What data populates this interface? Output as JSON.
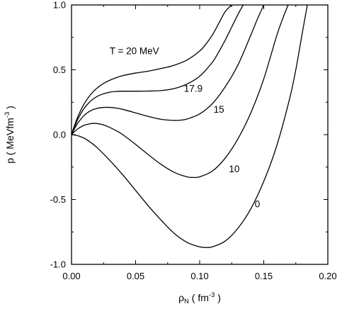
{
  "chart_data": {
    "type": "line",
    "title": "",
    "xlabel": {
      "main": "ρ",
      "sub": "N",
      "unit_prefix": " ( fm",
      "unit_sup": "-3",
      "unit_suffix": " )"
    },
    "ylabel": {
      "main": "p ( MeVfm",
      "sup": "-3",
      "suffix": " )"
    },
    "xlim": [
      0.0,
      0.2
    ],
    "ylim": [
      -1.0,
      1.0
    ],
    "xticks": [
      0.0,
      0.05,
      0.1,
      0.15,
      0.2
    ],
    "xtick_labels": [
      "0.00",
      "0.05",
      "0.10",
      "0.15",
      "0.20"
    ],
    "yticks": [
      -1.0,
      -0.5,
      0.0,
      0.5,
      1.0
    ],
    "ytick_labels": [
      "-1.0",
      "-0.5",
      "0.0",
      "0.5",
      "1.0"
    ],
    "grid": false,
    "series": [
      {
        "name": "T = 20 MeV",
        "x": [
          0,
          0.002,
          0.005,
          0.01,
          0.015,
          0.02,
          0.025,
          0.03,
          0.035,
          0.04,
          0.05,
          0.06,
          0.07,
          0.08,
          0.09,
          0.1,
          0.105,
          0.11,
          0.115,
          0.12,
          0.125
        ],
        "y": [
          0,
          0.06,
          0.14,
          0.24,
          0.31,
          0.36,
          0.395,
          0.42,
          0.44,
          0.455,
          0.475,
          0.49,
          0.51,
          0.535,
          0.575,
          0.645,
          0.7,
          0.77,
          0.86,
          0.95,
          1.0
        ]
      },
      {
        "name": "17.9",
        "x": [
          0,
          0.002,
          0.005,
          0.01,
          0.015,
          0.02,
          0.025,
          0.03,
          0.035,
          0.04,
          0.05,
          0.06,
          0.07,
          0.08,
          0.09,
          0.1,
          0.11,
          0.115,
          0.12,
          0.125,
          0.13,
          0.134
        ],
        "y": [
          0,
          0.05,
          0.12,
          0.205,
          0.26,
          0.295,
          0.315,
          0.328,
          0.333,
          0.335,
          0.335,
          0.336,
          0.34,
          0.355,
          0.39,
          0.45,
          0.56,
          0.64,
          0.73,
          0.83,
          0.93,
          1.0
        ]
      },
      {
        "name": "15",
        "x": [
          0,
          0.002,
          0.005,
          0.01,
          0.015,
          0.02,
          0.025,
          0.03,
          0.035,
          0.04,
          0.05,
          0.06,
          0.07,
          0.08,
          0.085,
          0.09,
          0.1,
          0.11,
          0.12,
          0.13,
          0.14,
          0.145,
          0.15
        ],
        "y": [
          0,
          0.04,
          0.09,
          0.15,
          0.185,
          0.203,
          0.21,
          0.21,
          0.205,
          0.195,
          0.168,
          0.14,
          0.118,
          0.11,
          0.112,
          0.12,
          0.16,
          0.24,
          0.37,
          0.54,
          0.77,
          0.89,
          1.0
        ]
      },
      {
        "name": "10",
        "x": [
          0,
          0.002,
          0.005,
          0.01,
          0.015,
          0.018,
          0.022,
          0.025,
          0.03,
          0.035,
          0.04,
          0.05,
          0.06,
          0.07,
          0.08,
          0.09,
          0.095,
          0.1,
          0.11,
          0.12,
          0.13,
          0.14,
          0.15,
          0.16,
          0.165,
          0.169
        ],
        "y": [
          0,
          0.02,
          0.045,
          0.073,
          0.085,
          0.087,
          0.082,
          0.075,
          0.055,
          0.03,
          0.0,
          -0.075,
          -0.155,
          -0.23,
          -0.29,
          -0.325,
          -0.33,
          -0.325,
          -0.28,
          -0.18,
          -0.03,
          0.17,
          0.43,
          0.76,
          0.9,
          1.0
        ]
      },
      {
        "name": "0",
        "x": [
          0,
          0.005,
          0.01,
          0.015,
          0.02,
          0.03,
          0.04,
          0.05,
          0.06,
          0.07,
          0.08,
          0.09,
          0.1,
          0.105,
          0.11,
          0.12,
          0.13,
          0.14,
          0.15,
          0.16,
          0.17,
          0.175,
          0.18,
          0.184
        ],
        "y": [
          0,
          -0.008,
          -0.028,
          -0.06,
          -0.1,
          -0.2,
          -0.31,
          -0.43,
          -0.55,
          -0.66,
          -0.76,
          -0.83,
          -0.865,
          -0.87,
          -0.865,
          -0.82,
          -0.72,
          -0.57,
          -0.36,
          -0.09,
          0.27,
          0.5,
          0.78,
          1.0
        ]
      }
    ],
    "annotations": [
      {
        "text": "T = 20 MeV",
        "series": "T = 20 MeV",
        "x": 0.049,
        "y": 0.62
      },
      {
        "text": "17.9",
        "series": "17.9",
        "x": 0.095,
        "y": 0.33
      },
      {
        "text": "15",
        "series": "15",
        "x": 0.115,
        "y": 0.17
      },
      {
        "text": "10",
        "series": "10",
        "x": 0.127,
        "y": -0.29
      },
      {
        "text": "0",
        "series": "0",
        "x": 0.145,
        "y": -0.56
      }
    ]
  }
}
